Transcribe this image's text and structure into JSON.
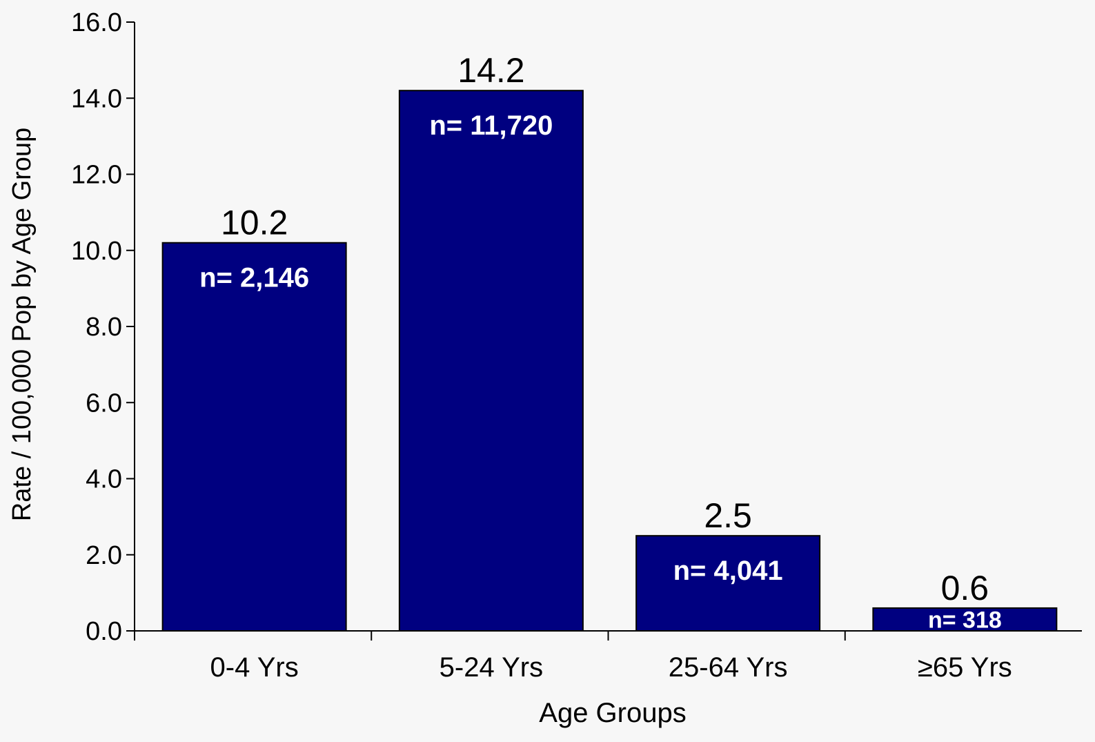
{
  "chart_data": {
    "type": "bar",
    "title": "",
    "xlabel": "Age Groups",
    "ylabel": "Rate / 100,000 Pop by Age Group",
    "ylim": [
      0,
      16
    ],
    "yticks": [
      "0.0",
      "2.0",
      "4.0",
      "6.0",
      "8.0",
      "10.0",
      "12.0",
      "14.0",
      "16.0"
    ],
    "categories": [
      "0-4 Yrs",
      "5-24 Yrs",
      "25-64 Yrs",
      "≥65  Yrs"
    ],
    "values": [
      10.2,
      14.2,
      2.5,
      0.6
    ],
    "value_labels": [
      "10.2",
      "14.2",
      "2.5",
      "0.6"
    ],
    "count_labels": [
      "n= 2,146",
      "n= 11,720",
      "n= 4,041",
      "n= 318"
    ],
    "grid": false,
    "legend": "none",
    "colors": {
      "bar": "#000080",
      "bar_text": "#ffffff",
      "axis": "#000000",
      "background": "#f7f7f7"
    }
  }
}
